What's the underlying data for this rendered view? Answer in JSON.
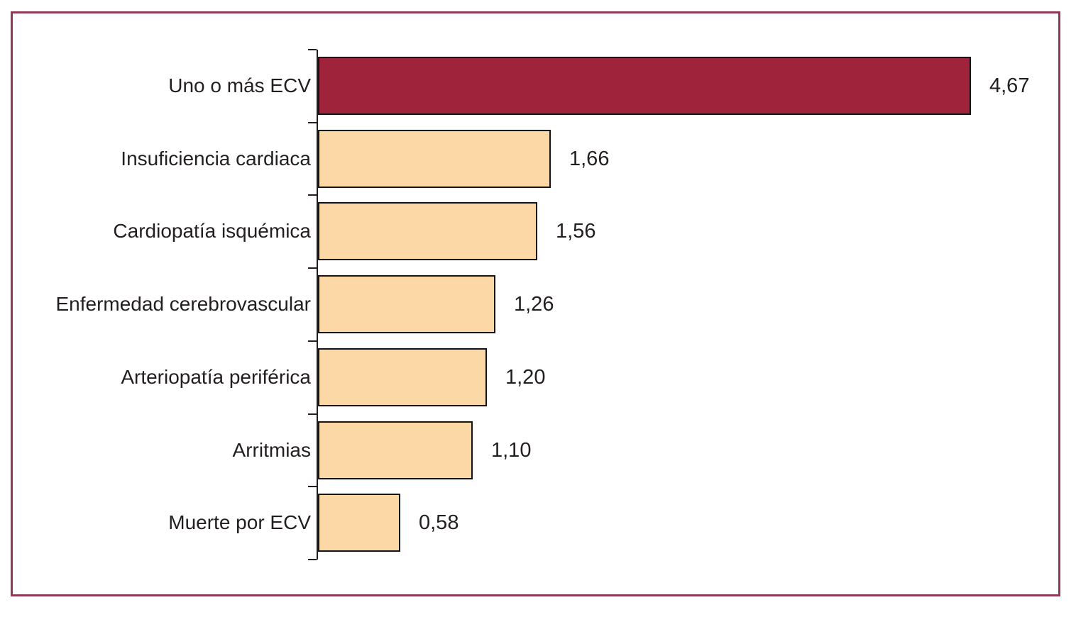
{
  "figure": {
    "frame_border_color": "#8E3A55",
    "background_color": "#FFFFFF"
  },
  "chart_data": {
    "type": "bar",
    "orientation": "horizontal",
    "title": "",
    "xlabel": "",
    "ylabel": "",
    "categories": [
      "Uno o más ECV",
      "Insuficiencia cardiaca",
      "Cardiopatía isquémica",
      "Enfermedad cerebrovascular",
      "Arteriopatía periférica",
      "Arritmias",
      "Muerte por ECV"
    ],
    "values": [
      4.67,
      1.66,
      1.56,
      1.26,
      1.2,
      1.1,
      0.58
    ],
    "value_labels": [
      "4,67",
      "1,66",
      "1,56",
      "1,26",
      "1,20",
      "1,10",
      "0,58"
    ],
    "highlight_index": 0,
    "xlim": [
      0,
      5.2
    ],
    "grid": false,
    "legend": false,
    "colors": {
      "highlight_bar": "#A0233C",
      "bar": "#FBD8A5",
      "bar_border": "#141414",
      "axis": "#231F20",
      "text": "#231F20"
    }
  }
}
